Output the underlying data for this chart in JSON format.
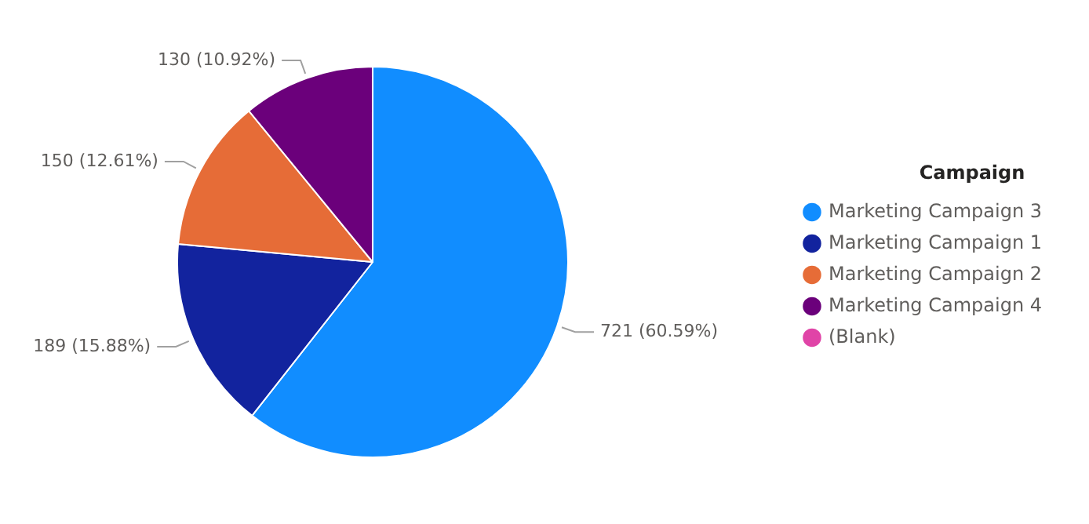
{
  "chart_data": {
    "type": "pie",
    "legend_title": "Campaign",
    "categories": [
      "Marketing Campaign 3",
      "Marketing Campaign 1",
      "Marketing Campaign 2",
      "Marketing Campaign 4",
      "(Blank)"
    ],
    "values": [
      721,
      189,
      150,
      130,
      0
    ],
    "colors": [
      "#118dff",
      "#12239e",
      "#e66c37",
      "#6b007b",
      "#e044a7"
    ],
    "value_labels": [
      "721 (60.59%)",
      "189 (15.88%)",
      "150 (12.61%)",
      "130 (10.92%)",
      null
    ],
    "legend": "right"
  }
}
